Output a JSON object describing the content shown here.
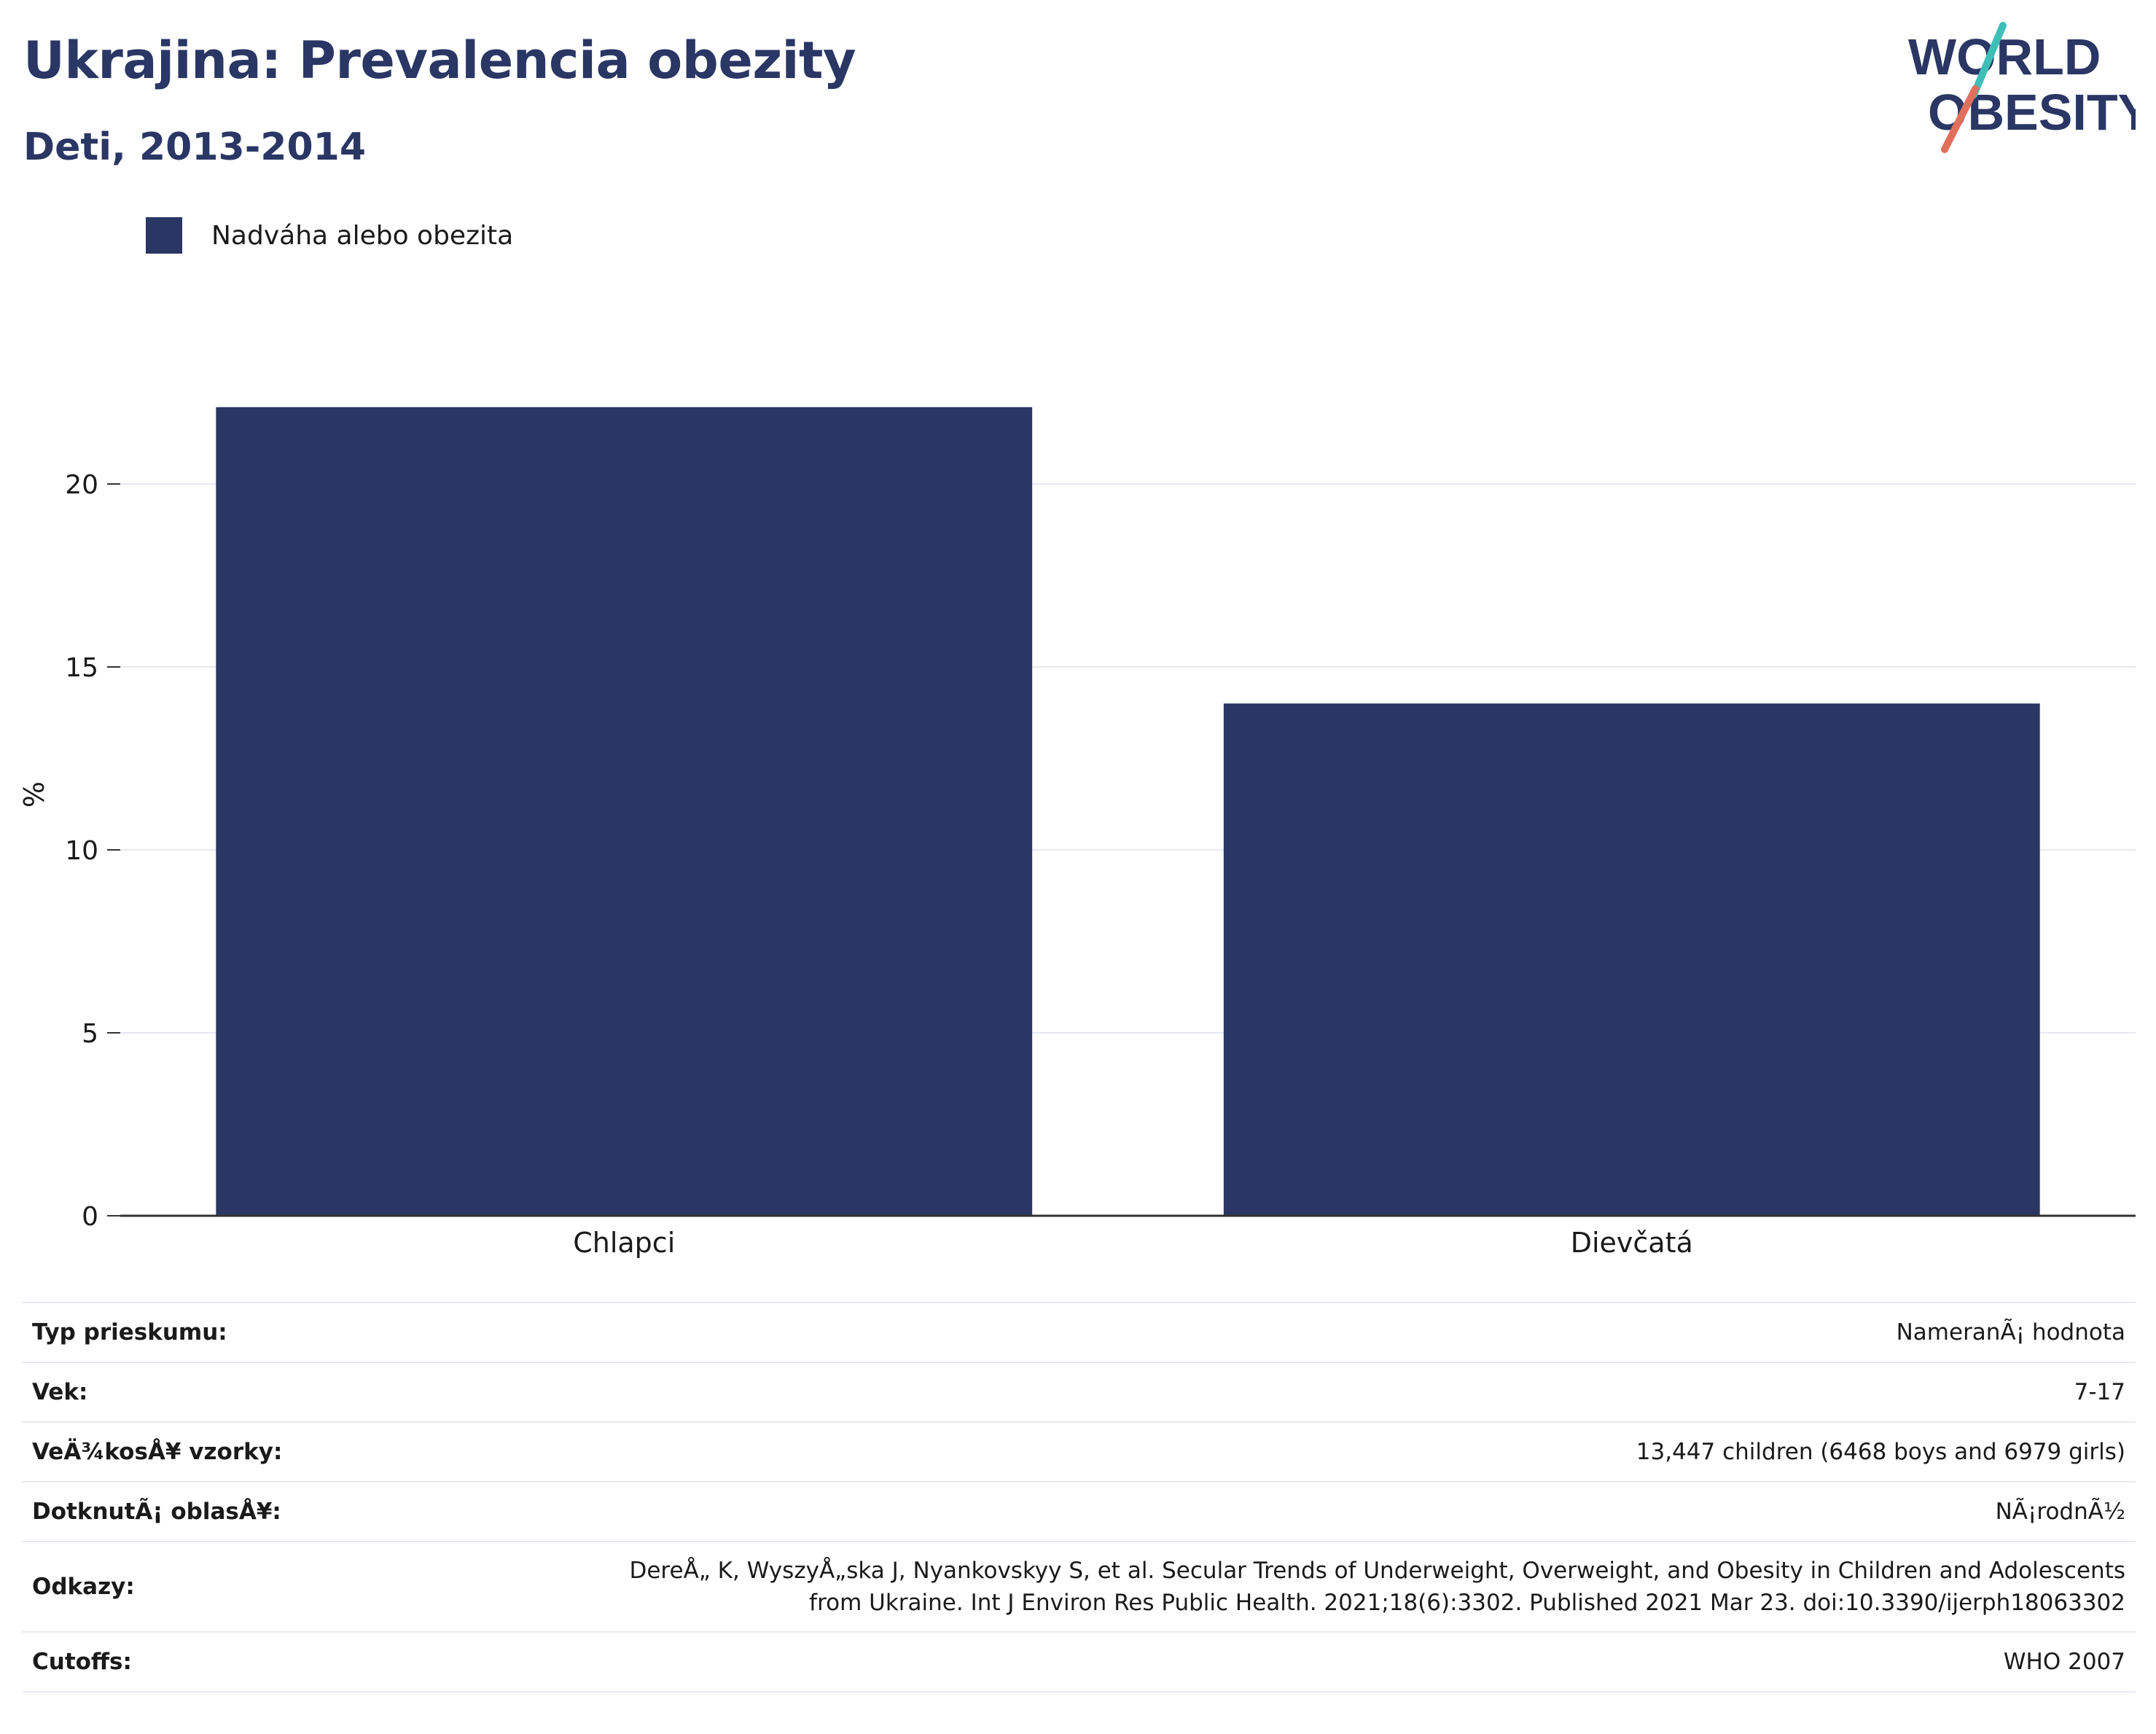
{
  "header": {
    "title": "Ukrajina: Prevalencia obezity",
    "subtitle": "Deti, 2013-2014"
  },
  "logo": {
    "line1": "WORLD",
    "line2": "OBESITY",
    "name": "world-obesity-logo"
  },
  "colors": {
    "bar": "#2a3664",
    "title": "#2a3664",
    "logo_teal": "#3dbfb8",
    "logo_coral": "#e0705c",
    "grid": "#e6e9ef"
  },
  "chart_data": {
    "type": "bar",
    "categories": [
      "Chlapci",
      "Dievčatá"
    ],
    "series": [
      {
        "name": "Nadváha alebo obezita",
        "values": [
          22.1,
          14.0
        ]
      }
    ],
    "ylabel": "%",
    "xlabel": "",
    "ylim": [
      0,
      24
    ],
    "yticks": [
      0,
      5,
      10,
      15,
      20
    ],
    "grid": true,
    "legend": "top-left"
  },
  "info": [
    {
      "key": "Typ prieskumu:",
      "value": "NameranÃ¡ hodnota"
    },
    {
      "key": "Vek:",
      "value": "7-17"
    },
    {
      "key": "VeÄ¾kosÅ¥ vzorky:",
      "value": "13,447 children (6468 boys and 6979 girls)"
    },
    {
      "key": "DotknutÃ¡ oblasÅ¥:",
      "value": "NÃ¡rodnÃ½"
    },
    {
      "key": "Odkazy:",
      "value_line1": "DereÅ„ K, WyszyÅ„ska J, Nyankovskyy S, et al. Secular Trends of Underweight, Overweight, and Obesity in Children and Adolescents",
      "value_line2": "from Ukraine. Int J Environ Res Public Health. 2021;18(6):3302. Published 2021 Mar 23. doi:10.3390/ijerph18063302"
    },
    {
      "key": "Cutoffs:",
      "value": "WHO 2007"
    }
  ]
}
